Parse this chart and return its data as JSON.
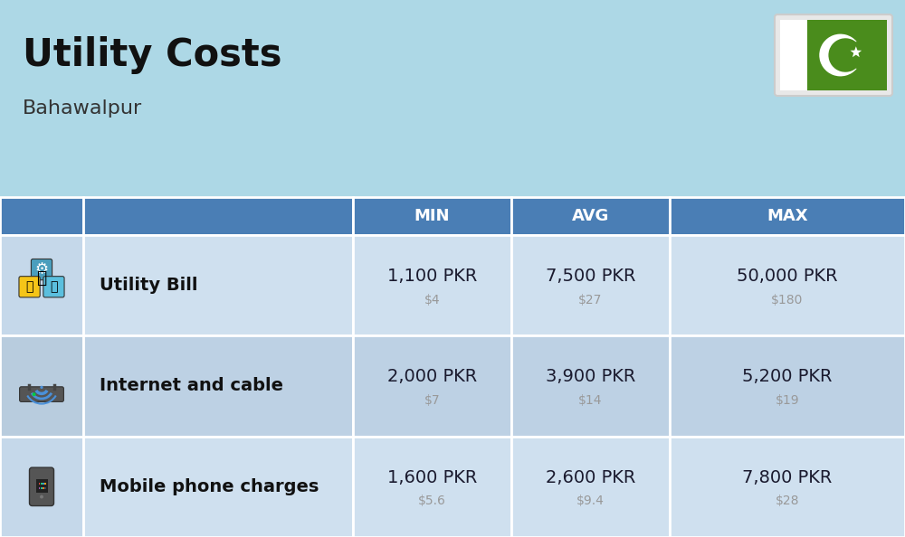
{
  "title": "Utility Costs",
  "subtitle": "Bahawalpur",
  "background_color": "#add8e6",
  "header_bg_color": "#4a7eb5",
  "header_text_color": "#ffffff",
  "row_bg_colors_odd": "#cfe0ef",
  "row_bg_colors_even": "#bdd1e4",
  "col_headers": [
    "MIN",
    "AVG",
    "MAX"
  ],
  "rows": [
    {
      "label": "Utility Bill",
      "min_pkr": "1,100 PKR",
      "min_usd": "$4",
      "avg_pkr": "7,500 PKR",
      "avg_usd": "$27",
      "max_pkr": "50,000 PKR",
      "max_usd": "$180"
    },
    {
      "label": "Internet and cable",
      "min_pkr": "2,000 PKR",
      "min_usd": "$7",
      "avg_pkr": "3,900 PKR",
      "avg_usd": "$14",
      "max_pkr": "5,200 PKR",
      "max_usd": "$19"
    },
    {
      "label": "Mobile phone charges",
      "min_pkr": "1,600 PKR",
      "min_usd": "$5.6",
      "avg_pkr": "2,600 PKR",
      "avg_usd": "$9.4",
      "max_pkr": "7,800 PKR",
      "max_usd": "$28"
    }
  ],
  "title_fontsize": 30,
  "subtitle_fontsize": 16,
  "header_fontsize": 13,
  "cell_pkr_fontsize": 14,
  "cell_usd_fontsize": 10,
  "label_fontsize": 14,
  "pkr_color": "#1a1a2e",
  "usd_color": "#999999",
  "label_color": "#111111",
  "flag_green": "#4a8c1c",
  "flag_white": "#ffffff",
  "border_color": "#ffffff"
}
